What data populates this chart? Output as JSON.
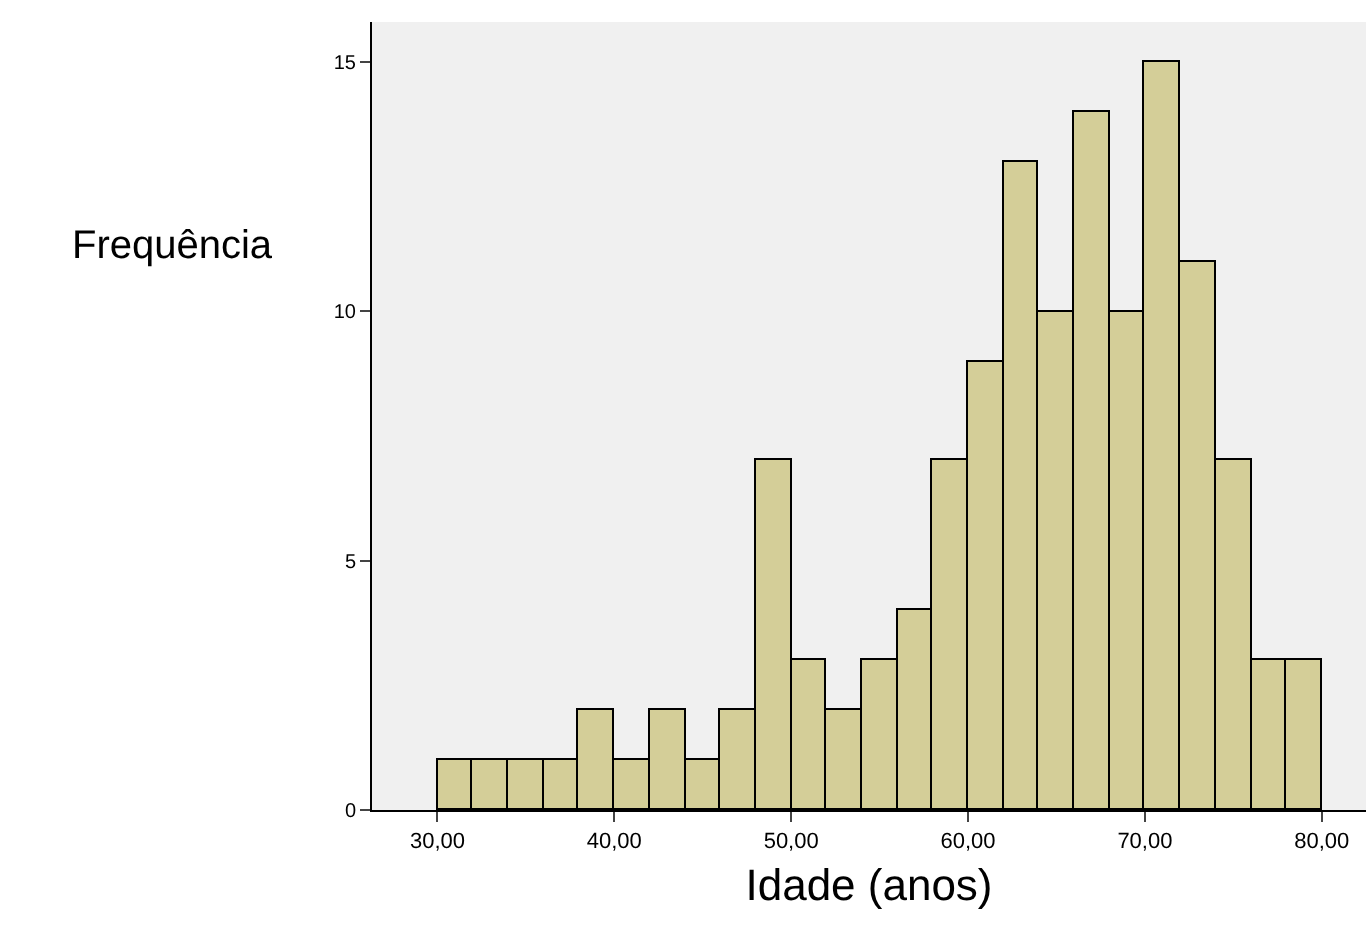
{
  "chart_data": {
    "type": "histogram",
    "xlabel": "Idade (anos)",
    "ylabel": "Frequência",
    "color": "#d4ce98",
    "bins": [
      30,
      32,
      34,
      36,
      38,
      40,
      42,
      44,
      46,
      48,
      50,
      52,
      54,
      56,
      58,
      60,
      62,
      64,
      66,
      68,
      70,
      72,
      74,
      76,
      78,
      80
    ],
    "values": [
      1,
      1,
      1,
      1,
      2,
      1,
      2,
      1,
      2,
      7,
      3,
      2,
      3,
      4,
      7,
      9,
      13,
      10,
      14,
      10,
      15,
      11,
      7,
      3,
      3
    ],
    "xlim": [
      26.3,
      82.5
    ],
    "ylim": [
      0,
      15.8
    ],
    "xticks": [
      {
        "value": 30,
        "label": "30,00"
      },
      {
        "value": 40,
        "label": "40,00"
      },
      {
        "value": 50,
        "label": "50,00"
      },
      {
        "value": 60,
        "label": "60,00"
      },
      {
        "value": 70,
        "label": "70,00"
      },
      {
        "value": 80,
        "label": "80,00"
      }
    ],
    "yticks": [
      0,
      5,
      10,
      15
    ],
    "grid": false
  }
}
